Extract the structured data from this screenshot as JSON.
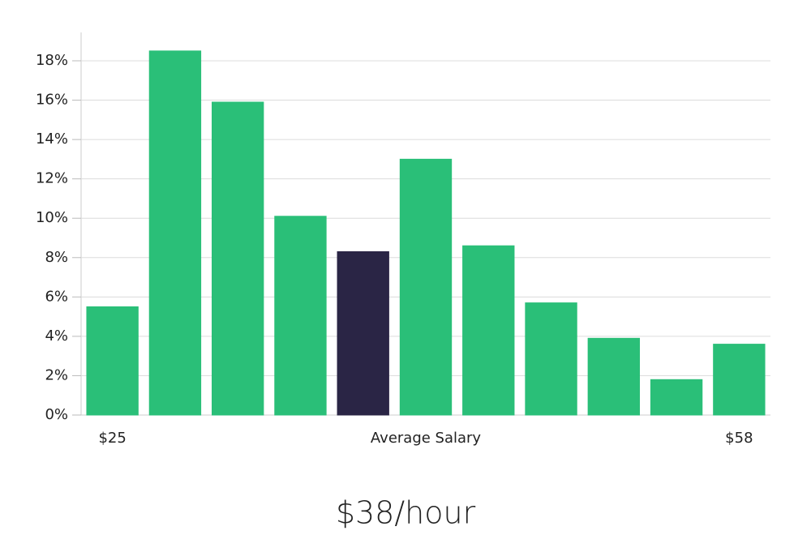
{
  "chart_data": {
    "type": "bar",
    "categories": [
      "$25",
      null,
      null,
      null,
      null,
      null,
      null,
      null,
      null,
      null,
      "$58"
    ],
    "values": [
      5.5,
      18.5,
      15.9,
      10.1,
      8.3,
      13.0,
      8.6,
      5.7,
      3.9,
      1.8,
      3.6
    ],
    "colors": [
      "#2abf78",
      "#2abf78",
      "#2abf78",
      "#2abf78",
      "#2a2545",
      "#2abf78",
      "#2abf78",
      "#2abf78",
      "#2abf78",
      "#2abf78",
      "#2abf78"
    ],
    "x_label": "Average Salary",
    "headline": "$38/hour",
    "ylim": [
      0,
      19.4
    ],
    "yticks": [
      {
        "value": 0,
        "label": "0%"
      },
      {
        "value": 2,
        "label": "2%"
      },
      {
        "value": 4,
        "label": "4%"
      },
      {
        "value": 6,
        "label": "6%"
      },
      {
        "value": 8,
        "label": "8%"
      },
      {
        "value": 10,
        "label": "10%"
      },
      {
        "value": 12,
        "label": "12%"
      },
      {
        "value": 14,
        "label": "14%"
      },
      {
        "value": 16,
        "label": "16%"
      },
      {
        "value": 18,
        "label": "18%"
      }
    ],
    "grid": true
  }
}
